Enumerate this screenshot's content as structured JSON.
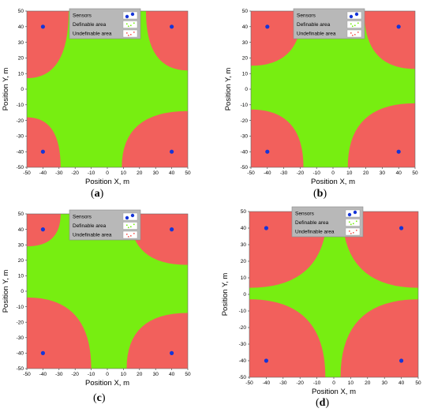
{
  "colors": {
    "definable": "#77ee11",
    "undefinable": "#f2605c",
    "sensor": "#1535d8",
    "legend_bg": "#b8b8b8"
  },
  "legend": {
    "sensors": "Sensors",
    "definable": "Definable area",
    "undefinable": "Undefinable area"
  },
  "chart_data": [
    {
      "type": "heatmap",
      "caption_open": "(",
      "caption_letter": "a",
      "caption_close": ")",
      "xlabel": "Position X, m",
      "ylabel": "Position Y, m",
      "xlim": [
        -50,
        50
      ],
      "ylim": [
        -50,
        50
      ],
      "xticks": [
        -50,
        -40,
        -30,
        -20,
        -10,
        0,
        10,
        20,
        30,
        40,
        50
      ],
      "yticks": [
        50,
        40,
        30,
        20,
        10,
        0,
        -10,
        -20,
        -30,
        -40,
        -50
      ],
      "sensors": [
        [
          -40,
          40
        ],
        [
          40,
          40
        ],
        [
          -40,
          -40
        ],
        [
          40,
          -40
        ]
      ],
      "region_boundary": {
        "top_left": [
          -24,
          7
        ],
        "top_right": [
          24,
          12
        ],
        "bottom_left": [
          -29,
          -18
        ],
        "bottom_right": [
          9,
          -14
        ]
      }
    },
    {
      "type": "heatmap",
      "caption_open": "(",
      "caption_letter": "b",
      "caption_close": ")",
      "xlabel": "Position X, m",
      "ylabel": "Position Y, m",
      "xlim": [
        -50,
        50
      ],
      "ylim": [
        -50,
        50
      ],
      "xticks": [
        -50,
        -40,
        -30,
        -20,
        -10,
        0,
        10,
        20,
        30,
        40,
        50
      ],
      "yticks": [
        50,
        40,
        30,
        20,
        10,
        0,
        -10,
        -20,
        -30,
        -40,
        -50
      ],
      "sensors": [
        [
          -40,
          40
        ],
        [
          40,
          40
        ],
        [
          -40,
          -40
        ],
        [
          40,
          -40
        ]
      ],
      "region_boundary": {
        "top_left": [
          -19,
          15
        ],
        "top_right": [
          19,
          13
        ],
        "bottom_left": [
          -18,
          -13
        ],
        "bottom_right": [
          9,
          -9
        ]
      }
    },
    {
      "type": "heatmap",
      "caption_open": "(",
      "caption_letter": "c",
      "caption_close": ")",
      "xlabel": "Position X, m",
      "ylabel": "Position Y, m",
      "xlim": [
        -50,
        50
      ],
      "ylim": [
        -50,
        50
      ],
      "xticks": [
        -50,
        -40,
        -30,
        -20,
        -10,
        0,
        10,
        20,
        30,
        40,
        50
      ],
      "yticks": [
        50,
        40,
        30,
        20,
        10,
        0,
        -10,
        -20,
        -30,
        -40,
        -50
      ],
      "sensors": [
        [
          -40,
          40
        ],
        [
          40,
          40
        ],
        [
          -40,
          -40
        ],
        [
          40,
          -40
        ]
      ],
      "region_boundary": {
        "top_left": [
          -29,
          29
        ],
        "top_right": [
          14,
          17
        ],
        "bottom_left": [
          -10,
          -4
        ],
        "bottom_right": [
          12,
          -14
        ]
      }
    },
    {
      "type": "heatmap",
      "caption_open": "(",
      "caption_letter": "d",
      "caption_close": ")",
      "xlabel": "Position X, m",
      "ylabel": "Position Y, m",
      "xlim": [
        -50,
        50
      ],
      "ylim": [
        -50,
        50
      ],
      "xticks": [
        -50,
        -40,
        -30,
        -20,
        -10,
        0,
        10,
        20,
        30,
        40,
        50
      ],
      "yticks": [
        50,
        40,
        30,
        20,
        10,
        0,
        -10,
        -20,
        -30,
        -40,
        -50
      ],
      "sensors": [
        [
          -40,
          40
        ],
        [
          40,
          40
        ],
        [
          -40,
          -40
        ],
        [
          40,
          -40
        ]
      ],
      "region_boundary": {
        "top_left": [
          -4,
          4
        ],
        "top_right": [
          5,
          4
        ],
        "bottom_left": [
          -5,
          -3
        ],
        "bottom_right": [
          4,
          -3
        ]
      }
    }
  ]
}
